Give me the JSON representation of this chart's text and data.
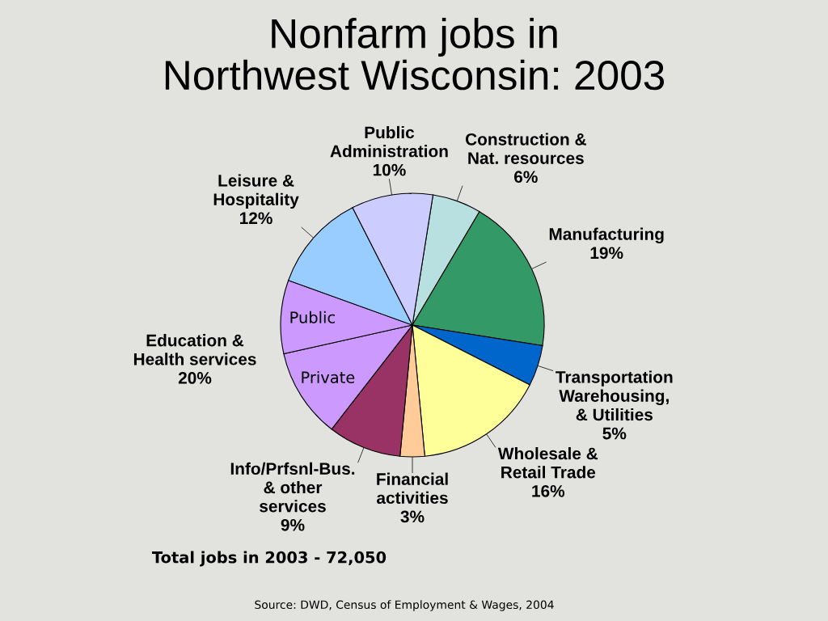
{
  "chart_data": {
    "type": "pie",
    "title": "Nonfarm jobs in\nNorthwest Wisconsin: 2003",
    "categories": [
      "Construction &\nNat. resources",
      "Manufacturing",
      "Transportation\nWarehousing,\n& Utilities",
      "Wholesale &\nRetail Trade",
      "Financial\nactivities",
      "Info/Prfsnl-Bus.\n& other\nservices",
      "Private",
      "Public",
      "Leisure &\nHospitality",
      "Public\nAdministration"
    ],
    "values": [
      6,
      19,
      5,
      16,
      3,
      9,
      11,
      9,
      12,
      10
    ],
    "value_labels": [
      "6%",
      "19%",
      "5%",
      "16%",
      "3%",
      "9%",
      null,
      null,
      "12%",
      "10%"
    ],
    "colors": [
      "#b8e0e0",
      "#339966",
      "#0066cc",
      "#ffff99",
      "#ffcc99",
      "#993366",
      "#cc99ff",
      "#cc99ff",
      "#99ccff",
      "#ccccff"
    ],
    "annotations": [
      "Education &\nHealth services\n20%",
      "Total jobs in 2003 - 72,050",
      "Source: DWD, Census of Employment & Wages, 2004"
    ],
    "legend": false
  }
}
